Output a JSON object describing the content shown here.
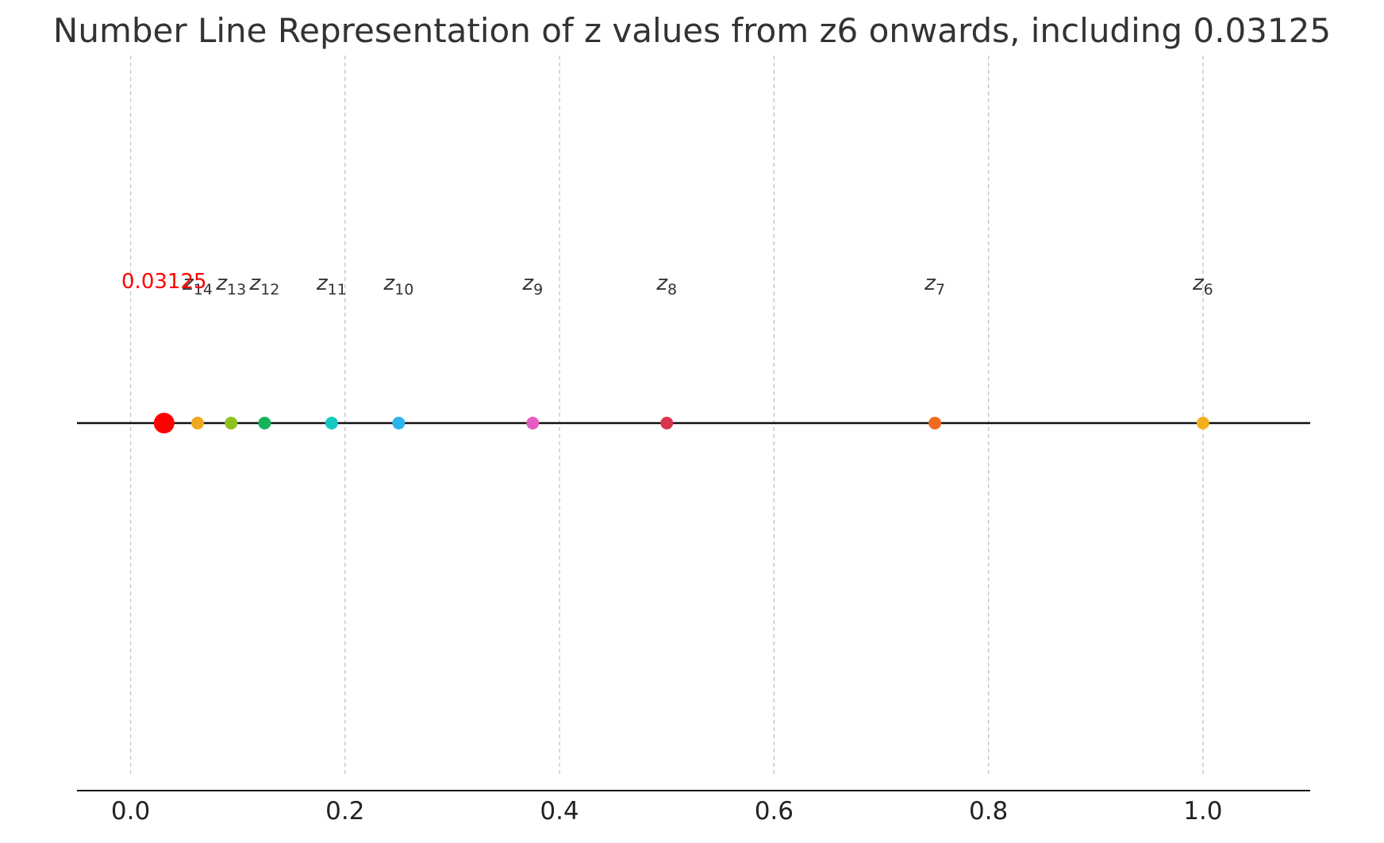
{
  "chart_data": {
    "type": "scatter",
    "title": "Number Line Representation of z values from z6 onwards, including 0.03125",
    "xlabel": "",
    "ylabel": "",
    "xlim": [
      -0.05,
      1.1
    ],
    "xticks": [
      0.0,
      0.2,
      0.4,
      0.6,
      0.8,
      1.0
    ],
    "xtick_labels": [
      "0.0",
      "0.2",
      "0.4",
      "0.6",
      "0.8",
      "1.0"
    ],
    "grid": {
      "vertical": true,
      "style": "dashed"
    },
    "points": [
      {
        "name": "z",
        "sub": "6",
        "x": 1.0,
        "color": "#F2B01E"
      },
      {
        "name": "z",
        "sub": "7",
        "x": 0.75,
        "color": "#EE6A1F"
      },
      {
        "name": "z",
        "sub": "8",
        "x": 0.5,
        "color": "#D9344E"
      },
      {
        "name": "z",
        "sub": "9",
        "x": 0.375,
        "color": "#E75BC3"
      },
      {
        "name": "z",
        "sub": "10",
        "x": 0.25,
        "color": "#2DB3EE"
      },
      {
        "name": "z",
        "sub": "11",
        "x": 0.1875,
        "color": "#17C7C2"
      },
      {
        "name": "z",
        "sub": "12",
        "x": 0.125,
        "color": "#17B35A"
      },
      {
        "name": "z",
        "sub": "13",
        "x": 0.09375,
        "color": "#8EC21E"
      },
      {
        "name": "z",
        "sub": "14",
        "x": 0.0625,
        "color": "#F0A81C"
      }
    ],
    "highlight": {
      "label": "0.03125",
      "x": 0.03125,
      "color": "#FF0000"
    }
  }
}
